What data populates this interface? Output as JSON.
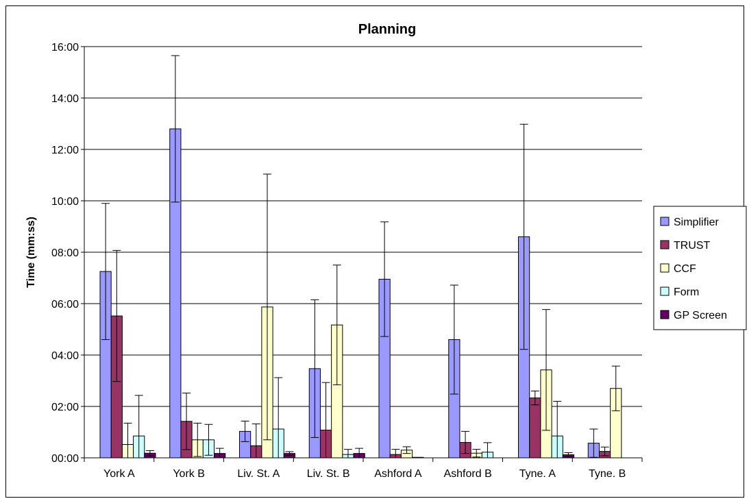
{
  "chart_data": {
    "type": "bar",
    "title": "Planning",
    "xlabel": "",
    "ylabel": "Time (mm:ss)",
    "yunits": "minutes",
    "ylim": [
      0,
      16
    ],
    "yticks": [
      "00:00",
      "02:00",
      "04:00",
      "06:00",
      "08:00",
      "10:00",
      "12:00",
      "14:00",
      "16:00"
    ],
    "grid": true,
    "legend_position": "right",
    "categories": [
      "York A",
      "York B",
      "Liv. St. A",
      "Liv. St. B",
      "Ashford A",
      "Ashford B",
      "Tyne. A",
      "Tyne. B"
    ],
    "series": [
      {
        "name": "Simplifier",
        "color": "#9999ff",
        "values": [
          7.25,
          12.8,
          1.03,
          3.47,
          6.95,
          4.6,
          8.6,
          0.57
        ],
        "error": [
          2.65,
          2.85,
          0.4,
          2.68,
          2.23,
          2.12,
          4.38,
          0.55
        ]
      },
      {
        "name": "TRUST",
        "color": "#993366",
        "values": [
          5.52,
          1.42,
          0.47,
          1.08,
          0.13,
          0.6,
          2.33,
          0.25
        ],
        "error": [
          2.55,
          1.1,
          0.85,
          1.85,
          0.2,
          0.43,
          0.27,
          0.17
        ]
      },
      {
        "name": "CCF",
        "color": "#ffffcc",
        "values": [
          0.52,
          0.7,
          5.87,
          5.17,
          0.3,
          0.18,
          3.42,
          2.7
        ],
        "error": [
          0.83,
          0.65,
          5.17,
          2.33,
          0.13,
          0.15,
          2.35,
          0.87
        ]
      },
      {
        "name": "Form",
        "color": "#ccffff",
        "values": [
          0.85,
          0.7,
          1.12,
          0.13,
          0.02,
          0.22,
          0.85,
          0.0
        ],
        "error": [
          1.58,
          0.6,
          2.0,
          0.2,
          0,
          0.37,
          1.35,
          0
        ]
      },
      {
        "name": "GP Screen",
        "color": "#660066",
        "values": [
          0.18,
          0.17,
          0.17,
          0.17,
          0.0,
          0.0,
          0.12,
          0.0
        ],
        "error": [
          0.1,
          0.2,
          0.07,
          0.2,
          0,
          0,
          0.08,
          0
        ]
      }
    ]
  }
}
